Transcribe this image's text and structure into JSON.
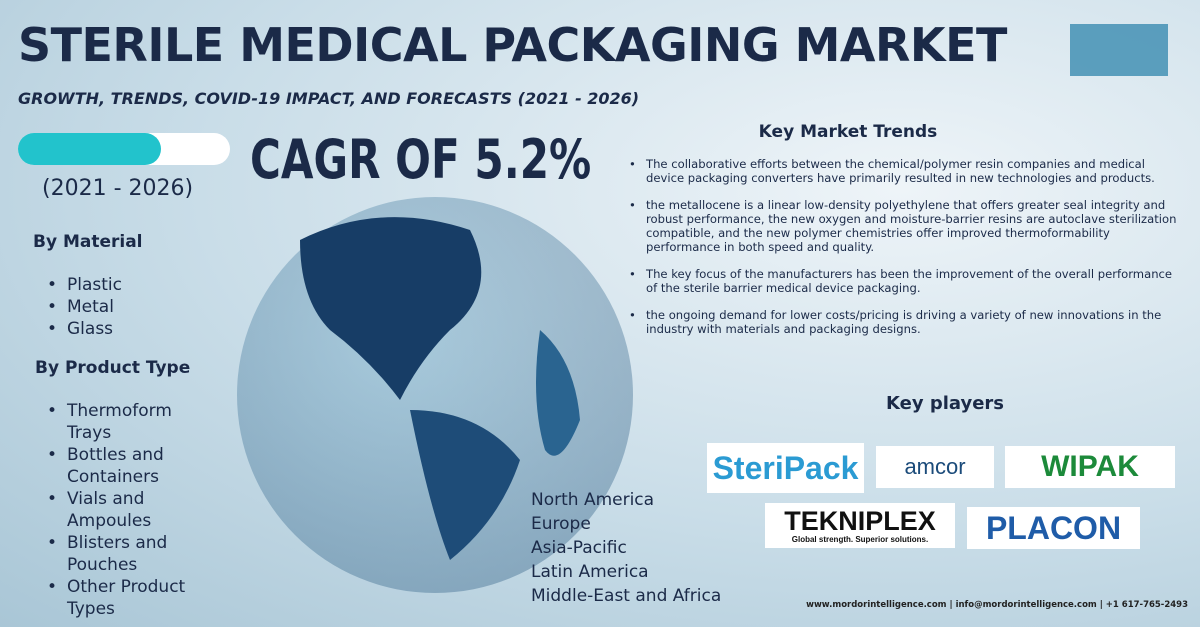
{
  "header": {
    "title": "STERILE MEDICAL PACKAGING MARKET",
    "subtitle": "GROWTH, TRENDS, COVID-19 IMPACT, AND FORECASTS (2021 - 2026)"
  },
  "cagr": {
    "label": "CAGR OF 5.2%",
    "period": "(2021 - 2026)"
  },
  "segments": [
    {
      "heading": "By Material",
      "items": [
        "Plastic",
        "Metal",
        "Glass"
      ]
    },
    {
      "heading": "By Product Type",
      "items": [
        "Thermoform Trays",
        "Bottles and Containers",
        "Vials and Ampoules",
        "Blisters and Pouches",
        "Other Product Types"
      ]
    }
  ],
  "regions": [
    "North America",
    "Europe",
    "Asia-Pacific",
    "Latin America",
    "Middle-East and Africa"
  ],
  "trends": {
    "heading": "Key Market Trends",
    "items": [
      "The collaborative efforts between the chemical/polymer resin companies and medical device packaging converters have primarily resulted in new technologies and products.",
      "the metallocene is a linear low-density polyethylene that offers greater seal integrity and robust performance, the new oxygen and moisture-barrier resins are autoclave sterilization compatible, and the new polymer chemistries offer improved thermoformability performance in both speed and quality.",
      "The key focus of the manufacturers has been the improvement of the overall performance of the sterile barrier medical device packaging.",
      "the ongoing demand for lower costs/pricing is driving a variety of new innovations in the industry with materials and packaging designs."
    ]
  },
  "players": {
    "heading": "Key players",
    "logos": [
      "SteriPack",
      "amcor",
      "WIPAK",
      "TEKNIPLEX",
      "Global strength. Superior solutions.",
      "PLACON"
    ]
  },
  "footer": "www.mordorintelligence.com | info@mordorintelligence.com | +1 617-765-2493"
}
